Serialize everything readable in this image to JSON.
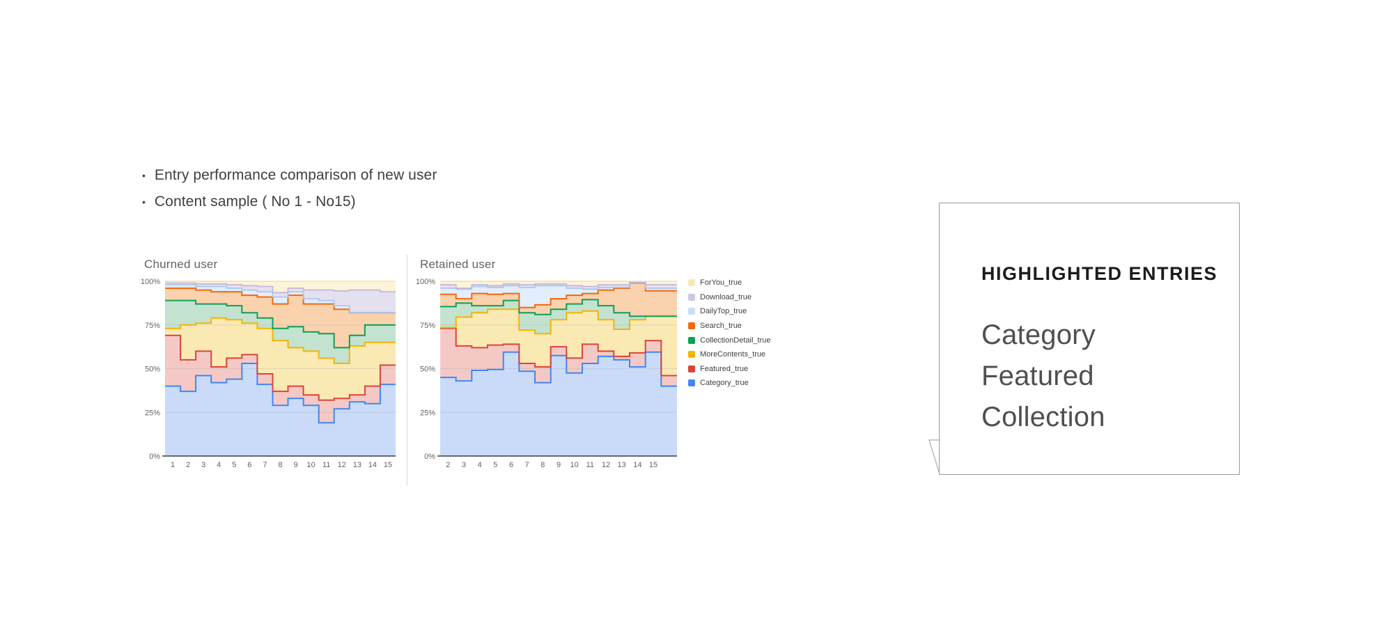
{
  "slide": {
    "bullets": [
      "Entry performance comparison of new user",
      "Content sample ( No 1 - No15)"
    ]
  },
  "chart_data": [
    {
      "id": "churned",
      "type": "area",
      "subtype": "stacked_stepped_area_100pct",
      "title": "Churned user",
      "x_labels": [
        "1",
        "2",
        "3",
        "4",
        "5",
        "6",
        "7",
        "8",
        "9",
        "10",
        "11",
        "12",
        "13",
        "14",
        "15"
      ],
      "y_ticks": [
        "0%",
        "25%",
        "50%",
        "75%",
        "100%"
      ],
      "ylim": [
        0,
        100
      ],
      "grid": true,
      "values_are": "cumulative stack-top boundary percent per x position, series listed bottom to top",
      "series_bottom_to_top": [
        {
          "name": "Category_true",
          "line_color": "#4285f4",
          "fill_color": "#c9dbf8",
          "line_width": 2,
          "stack_top": [
            40,
            37,
            46,
            42,
            44,
            53,
            41,
            29,
            33,
            29,
            19,
            27,
            31,
            30,
            41
          ]
        },
        {
          "name": "Featured_true",
          "line_color": "#db4437",
          "fill_color": "#f4c9c5",
          "line_width": 2,
          "stack_top": [
            69,
            55,
            60,
            51,
            56,
            58,
            47,
            37,
            40,
            35,
            32,
            33,
            35,
            40,
            52
          ]
        },
        {
          "name": "MoreContents_true",
          "line_color": "#f4b400",
          "fill_color": "#fbe9b4",
          "line_width": 2,
          "stack_top": [
            73,
            75,
            76,
            79,
            78,
            76,
            73,
            66,
            62,
            60,
            56,
            53,
            63,
            65,
            65
          ]
        },
        {
          "name": "CollectionDetail_true",
          "line_color": "#0f9d58",
          "fill_color": "#c3e2d0",
          "line_width": 2,
          "stack_top": [
            89,
            89,
            87,
            87,
            86,
            82,
            79,
            73,
            74,
            71,
            70,
            62,
            69,
            75,
            75
          ]
        },
        {
          "name": "Search_true",
          "line_color": "#f3680b",
          "fill_color": "#fad2ae",
          "line_width": 2,
          "stack_top": [
            96,
            96,
            95,
            94,
            94,
            92,
            91,
            87,
            92,
            87,
            87,
            84,
            82,
            82,
            82
          ]
        },
        {
          "name": "DailyTop_true",
          "line_color": "#a9c7ee",
          "fill_color": "#e3edfb",
          "line_width": 1.8,
          "stack_top": [
            98,
            98,
            97,
            97,
            96,
            95,
            94,
            91,
            94,
            90,
            89,
            86,
            82,
            82,
            82
          ]
        },
        {
          "name": "Download_true",
          "line_color": "#c2b8dc",
          "fill_color": "#e5e0f0",
          "line_width": 1.8,
          "stack_top": [
            99,
            99,
            98.5,
            98.5,
            98,
            97.5,
            97,
            93.5,
            96,
            95,
            95,
            94.5,
            95,
            95,
            94
          ]
        },
        {
          "name": "ForYou_true",
          "line_color": "#f0dfa8",
          "fill_color": "#fcf3d9",
          "line_width": 1.5,
          "stack_top": [
            100,
            100,
            100,
            100,
            100,
            100,
            100,
            100,
            100,
            100,
            100,
            100,
            100,
            100,
            100
          ]
        }
      ]
    },
    {
      "id": "retained",
      "type": "area",
      "subtype": "stacked_stepped_area_100pct",
      "title": "Retained user",
      "x_labels": [
        "2",
        "3",
        "4",
        "5",
        "6",
        "7",
        "8",
        "9",
        "10",
        "11",
        "12",
        "13",
        "14",
        "15",
        ""
      ],
      "y_ticks": [
        "0%",
        "25%",
        "50%",
        "75%",
        "100%"
      ],
      "ylim": [
        0,
        100
      ],
      "grid": true,
      "values_are": "cumulative stack-top boundary percent per x position, series listed bottom to top",
      "series_bottom_to_top": [
        {
          "name": "Category_true",
          "line_color": "#4285f4",
          "fill_color": "#c9dbf8",
          "line_width": 2,
          "stack_top": [
            45,
            43,
            49,
            49.5,
            59.5,
            48.5,
            42,
            57.5,
            47.5,
            53,
            57,
            55,
            51,
            59.5,
            40
          ]
        },
        {
          "name": "Featured_true",
          "line_color": "#db4437",
          "fill_color": "#f4c9c5",
          "line_width": 2,
          "stack_top": [
            73,
            63,
            62,
            63.5,
            64,
            53,
            51,
            62.5,
            56,
            64,
            60,
            57,
            59,
            66,
            46
          ]
        },
        {
          "name": "MoreContents_true",
          "line_color": "#f4b400",
          "fill_color": "#fbe9b4",
          "line_width": 2,
          "stack_top": [
            73.5,
            79.5,
            82,
            84,
            84,
            72,
            70,
            78,
            82,
            83,
            78,
            72.5,
            78,
            80,
            80
          ]
        },
        {
          "name": "CollectionDetail_true",
          "line_color": "#0f9d58",
          "fill_color": "#c3e2d0",
          "line_width": 2,
          "stack_top": [
            85.5,
            87.5,
            86,
            86,
            89,
            82,
            81,
            84,
            87,
            89.5,
            86,
            82,
            80,
            80,
            80
          ]
        },
        {
          "name": "Search_true",
          "line_color": "#f3680b",
          "fill_color": "#fad2ae",
          "line_width": 2,
          "stack_top": [
            92.5,
            90,
            93,
            92.5,
            93,
            85,
            86.5,
            90,
            92,
            93,
            95,
            96,
            99,
            94.5,
            94.5
          ]
        },
        {
          "name": "DailyTop_true",
          "line_color": "#a9c7ee",
          "fill_color": "#e3edfb",
          "line_width": 1.8,
          "stack_top": [
            96,
            95.5,
            97,
            96.5,
            97.5,
            96.5,
            97.5,
            97.5,
            96,
            95.5,
            96.5,
            96.5,
            99.3,
            96,
            96
          ]
        },
        {
          "name": "Download_true",
          "line_color": "#c2b8dc",
          "fill_color": "#e5e0f0",
          "line_width": 1.8,
          "stack_top": [
            98,
            96,
            98,
            97.5,
            98.5,
            98,
            98.5,
            98.5,
            97.5,
            97,
            98,
            98,
            99.7,
            98,
            98
          ]
        },
        {
          "name": "ForYou_true",
          "line_color": "#f0dfa8",
          "fill_color": "#fcf3d9",
          "line_width": 1.5,
          "stack_top": [
            100,
            100,
            100,
            100,
            100,
            100,
            100,
            100,
            100,
            100,
            100,
            100,
            100,
            100,
            100
          ]
        }
      ]
    }
  ],
  "legend": {
    "items": [
      {
        "label": "ForYou_true",
        "swatch": "#f8e8b8"
      },
      {
        "label": "Download_true",
        "swatch": "#cfc6e2"
      },
      {
        "label": "DailyTop_true",
        "swatch": "#c8def3"
      },
      {
        "label": "Search_true",
        "swatch": "#f3680b"
      },
      {
        "label": "CollectionDetail_true",
        "swatch": "#0f9d58"
      },
      {
        "label": "MoreContents_true",
        "swatch": "#f4b400"
      },
      {
        "label": "Featured_true",
        "swatch": "#db4437"
      },
      {
        "label": "Category_true",
        "swatch": "#4285f4"
      }
    ]
  },
  "panel": {
    "heading": "HIGHLIGHTED ENTRIES",
    "items": [
      "Category",
      "Featured",
      "Collection"
    ]
  },
  "colors": {
    "text_dark": "#3c4043",
    "chart_title": "#5f6368",
    "axis_label": "#616161",
    "grid_minor": "#9aa0a6",
    "grid_top": "#c7cacd",
    "axis_line": "#63676b",
    "divider": "#d8d8d8",
    "panel_border": "#9a9a9a"
  }
}
